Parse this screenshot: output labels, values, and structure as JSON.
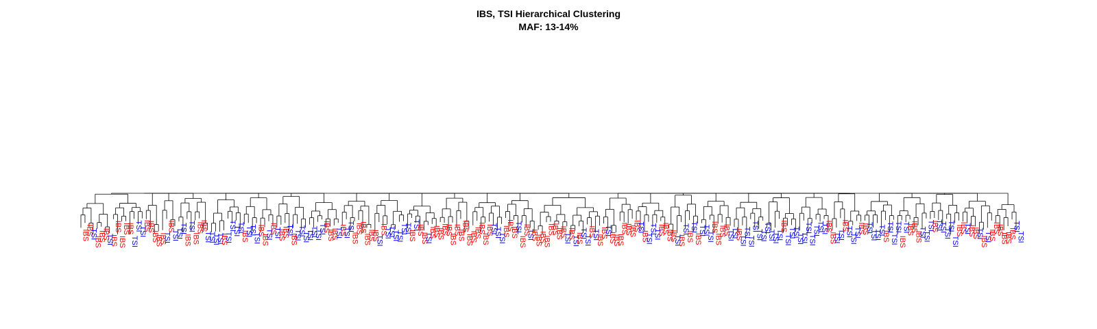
{
  "chart_data": {
    "type": "dendrogram",
    "title": "IBS, TSI Hierarchical Clustering",
    "subtitle": "MAF: 13-14%",
    "colors": {
      "IBS": "#ff0000",
      "TSI": "#0000ff",
      "branch": "#000000"
    },
    "groups": [
      "IBS",
      "TSI"
    ],
    "leaves": [
      "IBS",
      "IBS",
      "TSI",
      "IBS",
      "IBS",
      "IBS",
      "TSI",
      "IBS",
      "IBS",
      "IBS",
      "IBS",
      "IBS",
      "TSI",
      "TSI",
      "TSI",
      "IBS",
      "IBS",
      "IBS",
      "IBS",
      "IBS",
      "TSI",
      "IBS",
      "TSI",
      "TSI",
      "TSI",
      "IBS",
      "TSI",
      "IBS",
      "IBS",
      "IBS",
      "TSI",
      "TSI",
      "TSI",
      "TSI",
      "IBS",
      "TSI",
      "TSI",
      "TSI",
      "TSI",
      "IBS",
      "TSI",
      "TSI",
      "TSI",
      "IBS",
      "IBS",
      "TSI",
      "IBS",
      "TSI",
      "IBS",
      "IBS",
      "TSI",
      "IBS",
      "TSI",
      "TSI",
      "TSI",
      "TSI",
      "TSI",
      "TSI",
      "TSI",
      "IBS",
      "IBS",
      "IBS",
      "TSI",
      "IBS",
      "TSI",
      "TSI",
      "IBS",
      "IBS",
      "IBS",
      "IBS",
      "IBS",
      "IBS",
      "TSI",
      "IBS",
      "TSI",
      "TSI",
      "TSI",
      "TSI",
      "TSI",
      "TSI",
      "IBS",
      "TSI",
      "IBS",
      "IBS",
      "TSI",
      "IBS",
      "IBS",
      "IBS",
      "IBS",
      "IBS",
      "IBS",
      "IBS",
      "IBS",
      "IBS",
      "IBS",
      "IBS",
      "IBS",
      "IBS",
      "IBS",
      "IBS",
      "TSI",
      "TSI",
      "TSI",
      "IBS",
      "IBS",
      "IBS",
      "TSI",
      "IBS",
      "IBS",
      "TSI",
      "IBS",
      "IBS",
      "IBS",
      "IBS",
      "IBS",
      "IBS",
      "IBS",
      "IBS",
      "TSI",
      "IBS",
      "TSI",
      "IBS",
      "TSI",
      "TSI",
      "IBS",
      "TSI",
      "IBS",
      "IBS",
      "TSI",
      "IBS",
      "IBS",
      "IBS",
      "IBS",
      "IBS",
      "IBS",
      "IBS",
      "TSI",
      "IBS",
      "TSI",
      "TSI",
      "TSI",
      "IBS",
      "IBS",
      "IBS",
      "IBS",
      "TSI",
      "IBS",
      "TSI",
      "IBS",
      "TSI",
      "IBS",
      "TSI",
      "TSI",
      "TSI",
      "IBS",
      "IBS",
      "IBS",
      "IBS",
      "TSI",
      "TSI",
      "IBS",
      "TSI",
      "TSI",
      "TSI",
      "TSI",
      "TSI",
      "TSI",
      "TSI",
      "TSI",
      "TSI",
      "TSI",
      "IBS",
      "TSI",
      "TSI",
      "TSI",
      "TSI",
      "TSI",
      "TSI",
      "TSI",
      "TSI",
      "TSI",
      "TSI",
      "IBS",
      "IBS",
      "TSI",
      "TSI",
      "IBS",
      "TSI",
      "TSI",
      "TSI",
      "IBS",
      "IBS",
      "TSI",
      "TSI",
      "TSI",
      "TSI",
      "IBS",
      "TSI",
      "TSI",
      "TSI",
      "IBS",
      "TSI",
      "IBS",
      "IBS",
      "IBS",
      "TSI",
      "TSI",
      "TSI",
      "IBS",
      "TSI",
      "TSI",
      "TSI",
      "TSI",
      "TSI",
      "IBS",
      "IBS",
      "TSI",
      "IBS",
      "IBS",
      "TSI",
      "IBS",
      "TSI",
      "IBS",
      "IBS",
      "IBS",
      "IBS",
      "IBS",
      "IBS",
      "TSI",
      "TSI"
    ]
  }
}
